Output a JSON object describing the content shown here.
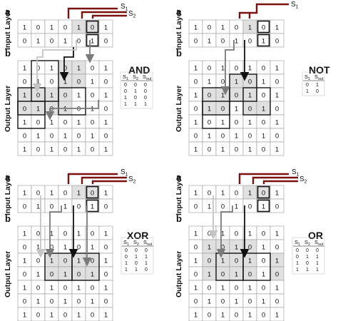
{
  "panels": [
    {
      "id": "and",
      "gate_title": "AND",
      "letter_a": "a",
      "letter_b": "b",
      "input_label": "Input Layer",
      "output_label": "Output Layer",
      "signals": [
        "S1",
        "S2"
      ],
      "input_grid": [
        [
          "1",
          "0",
          "1",
          "0",
          "1",
          "0",
          "1"
        ],
        [
          "0",
          "1",
          "0",
          "1",
          "0",
          "1",
          "0"
        ]
      ],
      "output_grid": [
        [
          "1",
          "0",
          "1",
          "0",
          "1",
          "0",
          "1"
        ],
        [
          "0",
          "1",
          "0",
          "1",
          "0",
          "1",
          "0"
        ],
        [
          "1",
          "0",
          "1",
          "0",
          "1",
          "0",
          "1"
        ],
        [
          "0",
          "1",
          "0",
          "1",
          "0",
          "1",
          "0"
        ],
        [
          "1",
          "0",
          "1",
          "0",
          "1",
          "0",
          "1"
        ],
        [
          "0",
          "1",
          "0",
          "1",
          "0",
          "1",
          "0"
        ],
        [
          "1",
          "0",
          "1",
          "0",
          "1",
          "0",
          "1"
        ]
      ],
      "truth_table": {
        "headers": [
          "S1",
          "S2",
          "Sout"
        ],
        "rows": [
          [
            "0",
            "0",
            "0"
          ],
          [
            "0",
            "1",
            "0"
          ],
          [
            "1",
            "0",
            "0"
          ],
          [
            "1",
            "1",
            "1"
          ]
        ]
      }
    },
    {
      "id": "not",
      "gate_title": "NOT",
      "letter_a": "a",
      "letter_b": "b",
      "input_label": "Input Layer",
      "output_label": "Output Layer",
      "signals": [
        "S1"
      ],
      "input_grid": [
        [
          "1",
          "0",
          "1",
          "0",
          "1",
          "0",
          "1"
        ],
        [
          "0",
          "1",
          "0",
          "1",
          "0",
          "1",
          "0"
        ]
      ],
      "output_grid": [
        [
          "1",
          "0",
          "1",
          "0",
          "1",
          "0",
          "1"
        ],
        [
          "0",
          "1",
          "0",
          "1",
          "0",
          "1",
          "0"
        ],
        [
          "1",
          "0",
          "1",
          "0",
          "1",
          "0",
          "1"
        ],
        [
          "0",
          "1",
          "0",
          "1",
          "0",
          "1",
          "0"
        ],
        [
          "1",
          "0",
          "1",
          "0",
          "1",
          "0",
          "1"
        ],
        [
          "0",
          "1",
          "0",
          "1",
          "0",
          "1",
          "0"
        ],
        [
          "1",
          "0",
          "1",
          "0",
          "1",
          "0",
          "1"
        ]
      ],
      "truth_table": {
        "headers": [
          "S1",
          "Sout"
        ],
        "rows": [
          [
            "0",
            "1"
          ],
          [
            "1",
            "0"
          ]
        ]
      }
    },
    {
      "id": "xor",
      "gate_title": "XOR",
      "letter_a": "a",
      "letter_b": "b",
      "input_label": "Input Layer",
      "output_label": "Output Layer",
      "signals": [
        "S1",
        "S2"
      ],
      "input_grid": [
        [
          "1",
          "0",
          "1",
          "0",
          "1",
          "0",
          "1"
        ],
        [
          "0",
          "1",
          "0",
          "1",
          "0",
          "1",
          "0"
        ]
      ],
      "output_grid": [
        [
          "1",
          "0",
          "1",
          "0",
          "1",
          "0",
          "1"
        ],
        [
          "0",
          "1",
          "0",
          "1",
          "0",
          "1",
          "0"
        ],
        [
          "1",
          "0",
          "1",
          "0",
          "1",
          "0",
          "1"
        ],
        [
          "0",
          "1",
          "0",
          "1",
          "0",
          "1",
          "0"
        ],
        [
          "1",
          "0",
          "1",
          "0",
          "1",
          "0",
          "1"
        ],
        [
          "0",
          "1",
          "0",
          "1",
          "0",
          "1",
          "0"
        ],
        [
          "1",
          "0",
          "1",
          "0",
          "1",
          "0",
          "1"
        ]
      ],
      "truth_table": {
        "headers": [
          "S1",
          "S2",
          "Sout"
        ],
        "rows": [
          [
            "0",
            "0",
            "0"
          ],
          [
            "0",
            "1",
            "1"
          ],
          [
            "1",
            "0",
            "1"
          ],
          [
            "1",
            "1",
            "0"
          ]
        ]
      }
    },
    {
      "id": "or",
      "gate_title": "OR",
      "letter_a": "a",
      "letter_b": "b",
      "input_label": "Input Layer",
      "output_label": "Output Layer",
      "signals": [
        "S1",
        "S2"
      ],
      "input_grid": [
        [
          "1",
          "0",
          "1",
          "0",
          "1",
          "0",
          "1"
        ],
        [
          "0",
          "1",
          "0",
          "1",
          "0",
          "1",
          "0"
        ]
      ],
      "output_grid": [
        [
          "1",
          "0",
          "1",
          "0",
          "1",
          "0",
          "1"
        ],
        [
          "0",
          "1",
          "0",
          "1",
          "0",
          "1",
          "0"
        ],
        [
          "1",
          "0",
          "1",
          "0",
          "1",
          "0",
          "1"
        ],
        [
          "0",
          "1",
          "0",
          "1",
          "0",
          "1",
          "0"
        ],
        [
          "1",
          "0",
          "1",
          "0",
          "1",
          "0",
          "1"
        ],
        [
          "0",
          "1",
          "0",
          "1",
          "0",
          "1",
          "0"
        ],
        [
          "1",
          "0",
          "1",
          "0",
          "1",
          "0",
          "1"
        ]
      ],
      "truth_table": {
        "headers": [
          "S1",
          "S2",
          "Sout"
        ],
        "rows": [
          [
            "0",
            "0",
            "0"
          ],
          [
            "0",
            "1",
            "1"
          ],
          [
            "1",
            "0",
            "1"
          ],
          [
            "1",
            "1",
            "1"
          ]
        ]
      }
    }
  ],
  "colors": {
    "signal_line": "#7a1010",
    "shade": "#e0e0e0",
    "shade_dark": "#c8c8c8",
    "arrow_black": "#111111",
    "arrow_gray": "#7a7a7a",
    "arrow_light": "#c4c4c4"
  }
}
